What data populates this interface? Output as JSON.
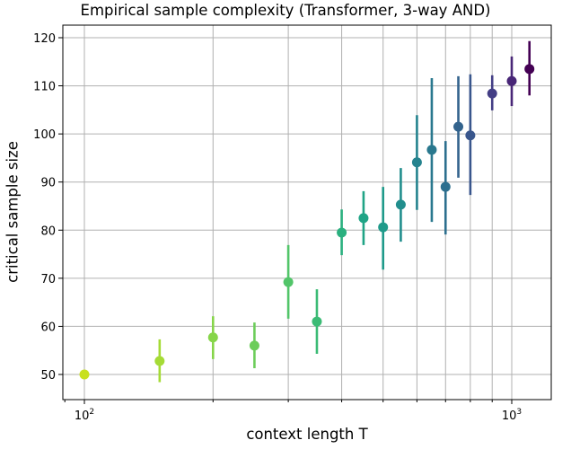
{
  "chart_data": {
    "type": "scatter",
    "subtype": "errorbar",
    "title": "Empirical sample complexity (Transformer, 3-way AND)",
    "xlabel": "context length T",
    "ylabel": "critical sample size",
    "xscale": "log",
    "xlim": [
      88,
      1270
    ],
    "ylim": [
      47.4,
      122.6
    ],
    "grid": true,
    "legend": null,
    "colormap": "viridis (reversed: light for small T, dark for large T)",
    "x_ticks": [
      {
        "value": 100,
        "label": "10",
        "exp": "2"
      },
      {
        "value": 1000,
        "label": "10",
        "exp": "3"
      }
    ],
    "y_ticks": [
      50,
      60,
      70,
      80,
      90,
      100,
      110,
      120
    ],
    "points": [
      {
        "x": 100,
        "y": 50.0,
        "lo": 50.0,
        "hi": 50.0,
        "color": "#c8e020"
      },
      {
        "x": 150,
        "y": 52.8,
        "lo": 48.4,
        "hi": 57.3,
        "color": "#a5db36"
      },
      {
        "x": 200,
        "y": 57.7,
        "lo": 53.2,
        "hi": 62.1,
        "color": "#86d549"
      },
      {
        "x": 250,
        "y": 56.0,
        "lo": 51.3,
        "hi": 60.8,
        "color": "#6ccd5a"
      },
      {
        "x": 300,
        "y": 69.2,
        "lo": 61.6,
        "hi": 76.9,
        "color": "#52c569"
      },
      {
        "x": 350,
        "y": 61.0,
        "lo": 54.3,
        "hi": 67.7,
        "color": "#3bbb75"
      },
      {
        "x": 400,
        "y": 79.5,
        "lo": 74.8,
        "hi": 84.3,
        "color": "#2ab07f"
      },
      {
        "x": 450,
        "y": 82.5,
        "lo": 76.9,
        "hi": 88.1,
        "color": "#20a486"
      },
      {
        "x": 500,
        "y": 80.6,
        "lo": 71.8,
        "hi": 89.0,
        "color": "#1f9a8a"
      },
      {
        "x": 550,
        "y": 85.3,
        "lo": 77.6,
        "hi": 92.9,
        "color": "#218e8d"
      },
      {
        "x": 600,
        "y": 94.1,
        "lo": 84.2,
        "hi": 103.9,
        "color": "#25838e"
      },
      {
        "x": 650,
        "y": 96.7,
        "lo": 81.7,
        "hi": 111.6,
        "color": "#29788e"
      },
      {
        "x": 700,
        "y": 89.0,
        "lo": 79.1,
        "hi": 98.5,
        "color": "#2d6f8e"
      },
      {
        "x": 750,
        "y": 101.5,
        "lo": 90.9,
        "hi": 112.0,
        "color": "#33638d"
      },
      {
        "x": 800,
        "y": 99.7,
        "lo": 87.3,
        "hi": 112.4,
        "color": "#39568c"
      },
      {
        "x": 900,
        "y": 108.4,
        "lo": 104.9,
        "hi": 112.2,
        "color": "#433e85"
      },
      {
        "x": 1000,
        "y": 111.0,
        "lo": 105.8,
        "hi": 116.1,
        "color": "#482677"
      },
      {
        "x": 1100,
        "y": 113.5,
        "lo": 108.0,
        "hi": 119.3,
        "color": "#440154"
      }
    ]
  }
}
